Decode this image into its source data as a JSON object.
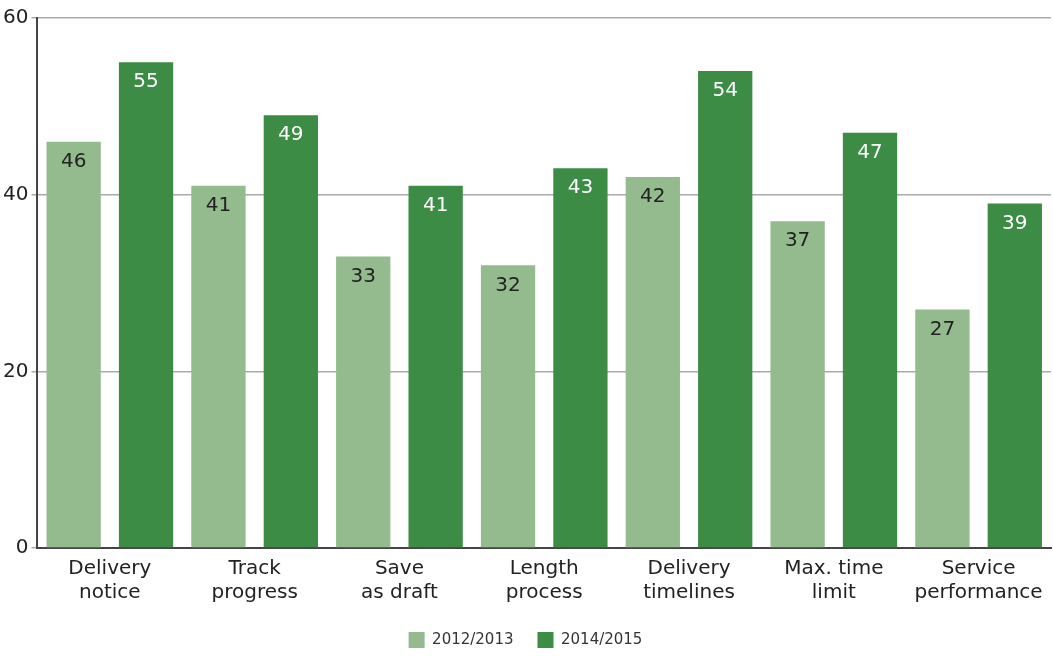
{
  "chart_data": {
    "type": "bar",
    "categories": [
      "Delivery\nnotice",
      "Track\nprogress",
      "Save\nas draft",
      "Length\nprocess",
      "Delivery\ntimelines",
      "Max. time\nlimit",
      "Service\nperformance"
    ],
    "series": [
      {
        "name": "2012/2013",
        "color": "#93bb8e",
        "values": [
          46,
          41,
          33,
          32,
          42,
          37,
          27
        ]
      },
      {
        "name": "2014/2015",
        "color": "#3d8c45",
        "values": [
          55,
          49,
          41,
          43,
          54,
          47,
          39
        ]
      }
    ],
    "ylim": [
      0,
      60
    ],
    "yticks": [
      0,
      20,
      40,
      60
    ],
    "grid": "y",
    "legend": "bottom",
    "data_labels": true
  }
}
